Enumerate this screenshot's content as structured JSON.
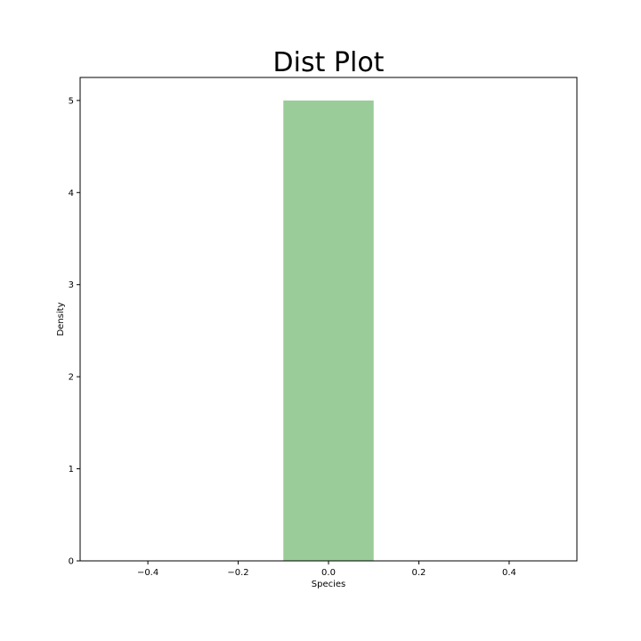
{
  "chart_data": {
    "type": "bar",
    "title": "Dist Plot",
    "xlabel": "Species",
    "ylabel": "Density",
    "bars": [
      {
        "x0": -0.1,
        "x1": 0.1,
        "value": 5.0
      }
    ],
    "xlim": [
      -0.55,
      0.55
    ],
    "ylim": [
      0,
      5.25
    ],
    "xticks": [
      -0.4,
      -0.2,
      0.0,
      0.2,
      0.4
    ],
    "xtick_labels": [
      "−0.4",
      "−0.2",
      "0.0",
      "0.2",
      "0.4"
    ],
    "yticks": [
      0,
      1,
      2,
      3,
      4,
      5
    ],
    "ytick_labels": [
      "0",
      "1",
      "2",
      "3",
      "4",
      "5"
    ],
    "bar_color": "#9acc99",
    "grid": false,
    "legend": "none"
  }
}
